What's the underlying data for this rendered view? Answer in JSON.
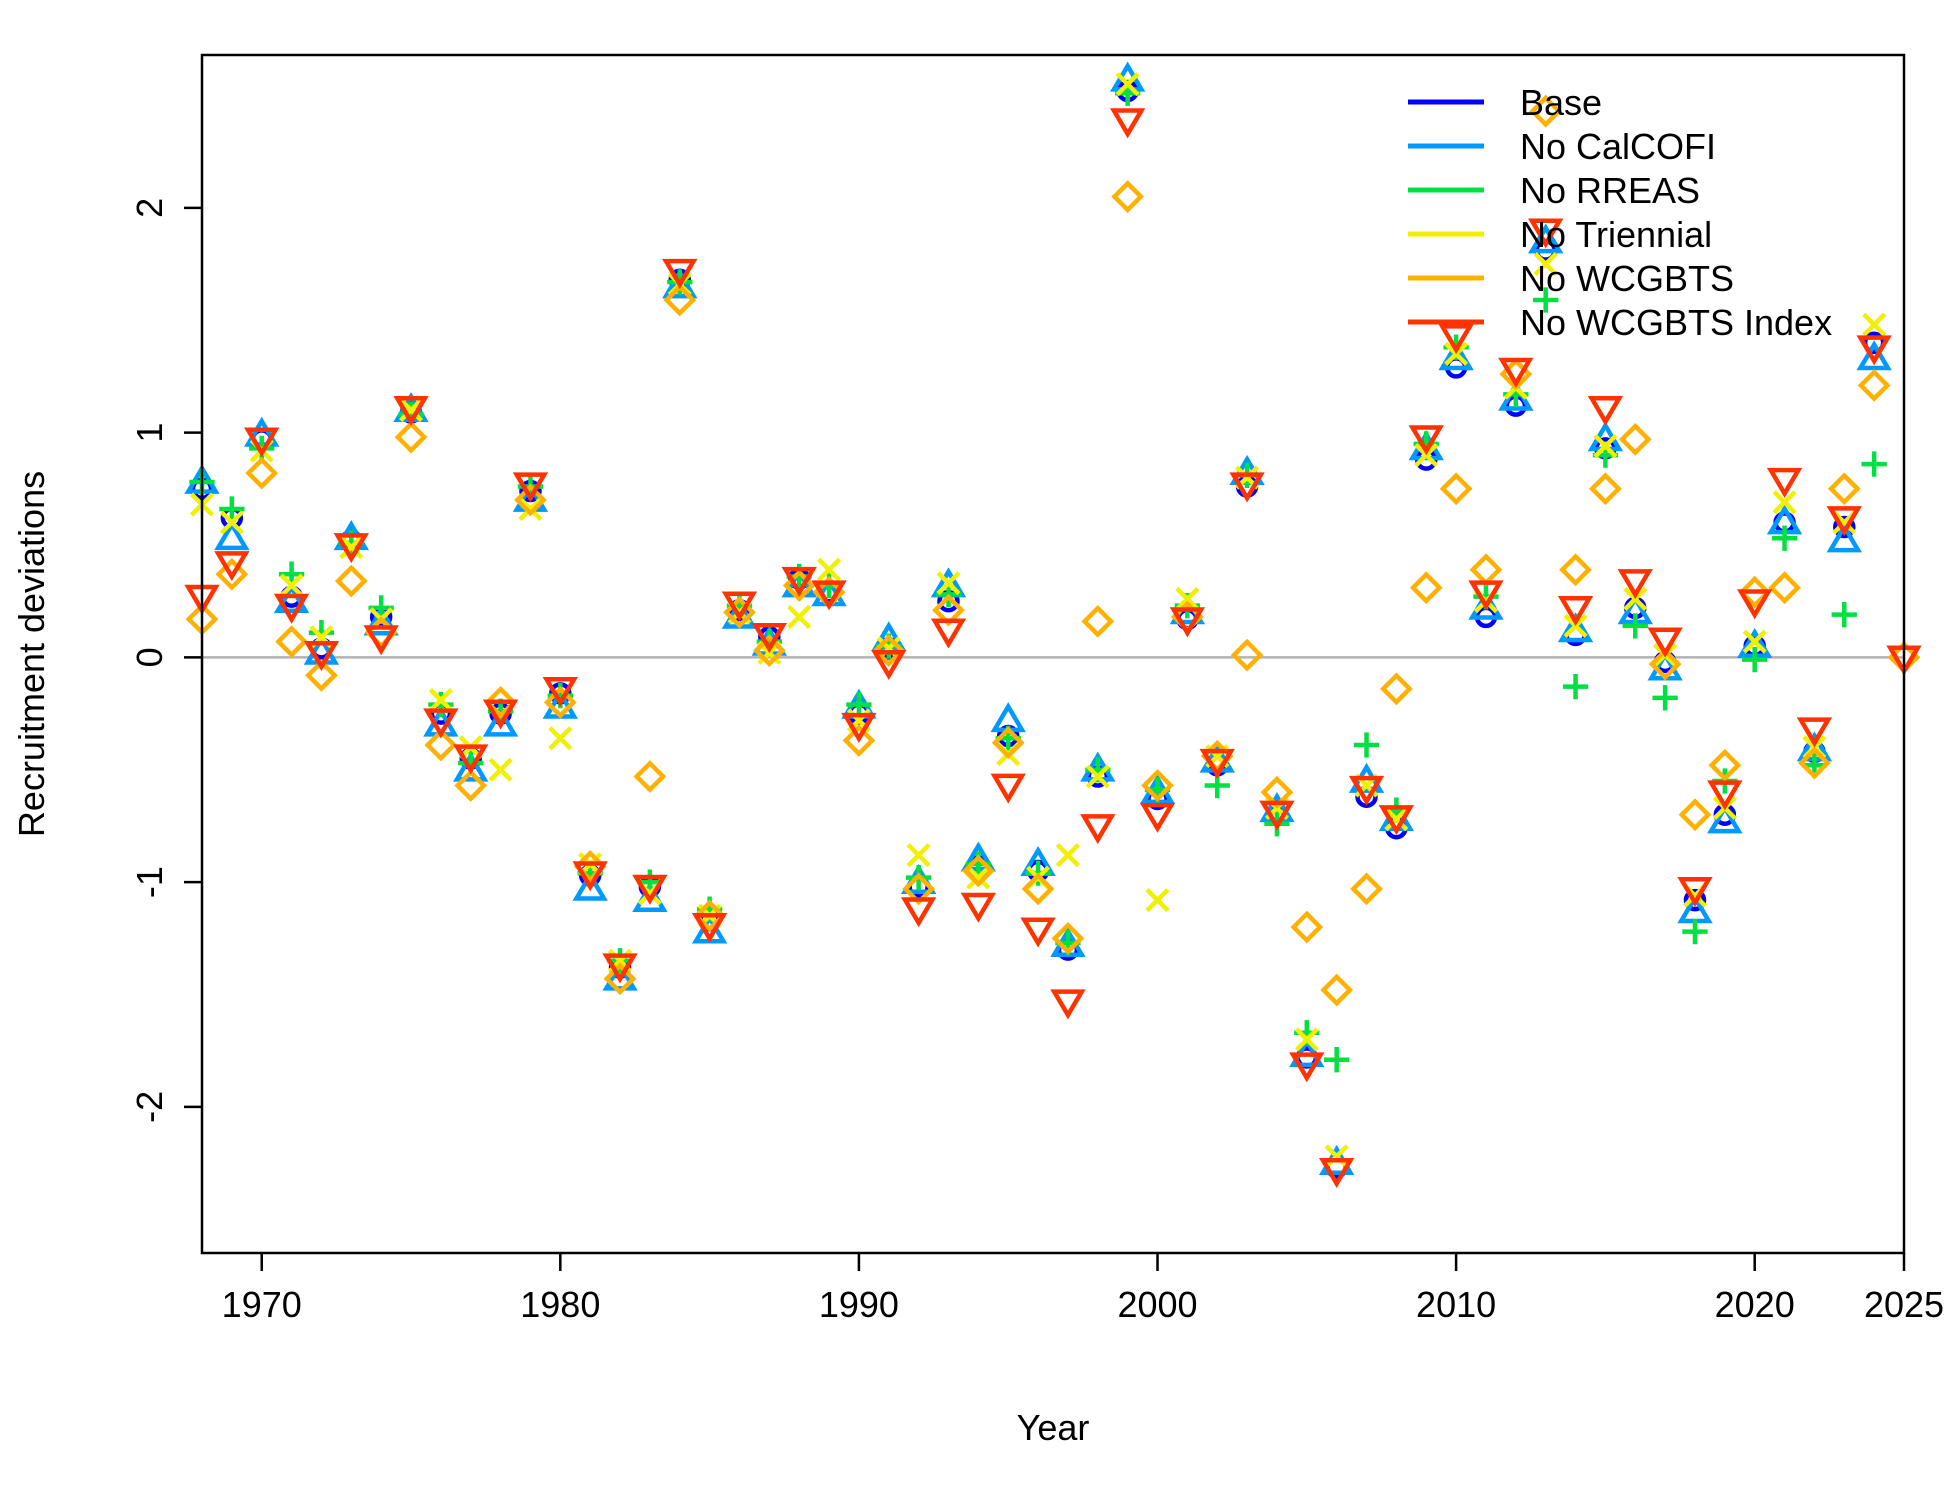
{
  "chart_data": {
    "type": "scatter",
    "title": "",
    "xlabel": "Year",
    "ylabel": "Recruitment deviations",
    "xlim": [
      1968,
      2025
    ],
    "ylim": [
      -2.65,
      2.68
    ],
    "x_ticks": [
      1970,
      1980,
      1990,
      2000,
      2010,
      2020,
      2025
    ],
    "y_ticks": [
      -2,
      -1,
      0,
      1,
      2
    ],
    "reference_line": 0,
    "legend_position": "top-right",
    "grid": false,
    "series": [
      {
        "name": "Base",
        "color": "#0000ff",
        "marker": "circle",
        "x": [
          1968,
          1969,
          1970,
          1971,
          1972,
          1973,
          1974,
          1975,
          1976,
          1977,
          1978,
          1979,
          1980,
          1981,
          1982,
          1983,
          1984,
          1985,
          1986,
          1987,
          1988,
          1989,
          1990,
          1991,
          1992,
          1993,
          1994,
          1995,
          1996,
          1997,
          1998,
          1999,
          2000,
          2001,
          2002,
          2003,
          2004,
          2005,
          2006,
          2007,
          2008,
          2009,
          2010,
          2011,
          2012,
          2013,
          2014,
          2015,
          2016,
          2017,
          2018,
          2019,
          2020,
          2021,
          2022,
          2023,
          2024
        ],
        "y": [
          0.75,
          0.62,
          0.97,
          0.27,
          0.04,
          0.52,
          0.18,
          1.09,
          -0.25,
          -0.45,
          -0.25,
          0.74,
          -0.16,
          -0.97,
          -1.38,
          -1.02,
          1.68,
          -1.17,
          0.21,
          0.09,
          0.35,
          0.29,
          -0.25,
          0.04,
          -1.02,
          0.25,
          -0.93,
          -0.35,
          -0.95,
          -1.3,
          -0.53,
          2.52,
          -0.63,
          0.17,
          -0.48,
          0.76,
          -0.7,
          -1.78,
          -2.27,
          -0.62,
          -0.76,
          0.88,
          1.29,
          0.18,
          1.12,
          1.81,
          0.1,
          0.93,
          0.22,
          -0.02,
          -1.08,
          -0.7,
          0.05,
          0.6,
          -0.42,
          0.58,
          1.4
        ]
      },
      {
        "name": "No CalCOFI",
        "color": "#0099ff",
        "marker": "triangle-up",
        "x": [
          1968,
          1969,
          1970,
          1971,
          1972,
          1973,
          1974,
          1975,
          1976,
          1977,
          1978,
          1979,
          1980,
          1981,
          1982,
          1983,
          1984,
          1985,
          1986,
          1987,
          1988,
          1989,
          1990,
          1991,
          1992,
          1993,
          1994,
          1995,
          1996,
          1997,
          1998,
          1999,
          2000,
          2001,
          2002,
          2003,
          2004,
          2005,
          2006,
          2007,
          2008,
          2009,
          2010,
          2011,
          2012,
          2013,
          2014,
          2015,
          2016,
          2017,
          2018,
          2019,
          2020,
          2021,
          2022,
          2023,
          2024
        ],
        "y": [
          0.78,
          0.53,
          0.99,
          0.25,
          0.02,
          0.53,
          0.15,
          1.1,
          -0.3,
          -0.5,
          -0.3,
          0.7,
          -0.22,
          -1.03,
          -1.43,
          -1.08,
          1.65,
          -1.22,
          0.18,
          0.06,
          0.32,
          0.28,
          -0.22,
          0.08,
          -1.0,
          0.32,
          -0.9,
          -0.28,
          -0.92,
          -1.28,
          -0.5,
          2.57,
          -0.6,
          0.2,
          -0.46,
          0.82,
          -0.68,
          -1.77,
          -2.25,
          -0.55,
          -0.72,
          0.93,
          1.33,
          0.22,
          1.15,
          1.85,
          0.12,
          0.97,
          0.2,
          -0.05,
          -1.13,
          -0.73,
          0.05,
          0.6,
          -0.41,
          0.52,
          1.33
        ]
      },
      {
        "name": "No RREAS",
        "color": "#00e040",
        "marker": "plus",
        "x": [
          1968,
          1969,
          1970,
          1971,
          1972,
          1973,
          1974,
          1975,
          1976,
          1977,
          1978,
          1979,
          1980,
          1981,
          1982,
          1983,
          1984,
          1985,
          1986,
          1987,
          1988,
          1989,
          1990,
          1991,
          1992,
          1993,
          1994,
          1995,
          1996,
          1997,
          1998,
          1999,
          2000,
          2001,
          2002,
          2003,
          2004,
          2005,
          2006,
          2007,
          2008,
          2009,
          2010,
          2011,
          2012,
          2013,
          2014,
          2015,
          2016,
          2017,
          2018,
          2019,
          2020,
          2021,
          2022,
          2023,
          2024
        ],
        "y": [
          0.78,
          0.66,
          0.93,
          0.37,
          0.11,
          0.51,
          0.22,
          1.08,
          -0.21,
          -0.47,
          -0.24,
          0.76,
          -0.17,
          -0.96,
          -1.35,
          -1.0,
          1.67,
          -1.12,
          0.23,
          0.07,
          0.36,
          0.32,
          -0.21,
          0.05,
          -0.98,
          0.28,
          -0.92,
          -0.36,
          -0.96,
          -1.27,
          -0.5,
          2.51,
          -0.59,
          0.23,
          -0.57,
          0.81,
          -0.74,
          -1.67,
          -1.79,
          -0.39,
          -0.68,
          0.95,
          1.38,
          0.27,
          1.17,
          1.59,
          -0.13,
          0.9,
          0.14,
          -0.18,
          -1.22,
          -0.55,
          -0.01,
          0.53,
          -0.48,
          0.19,
          0.86
        ]
      },
      {
        "name": "No Triennial",
        "color": "#f0f000",
        "marker": "x",
        "x": [
          1968,
          1969,
          1970,
          1971,
          1972,
          1973,
          1974,
          1975,
          1976,
          1977,
          1978,
          1979,
          1980,
          1981,
          1982,
          1983,
          1984,
          1985,
          1986,
          1987,
          1988,
          1989,
          1990,
          1991,
          1992,
          1993,
          1994,
          1995,
          1996,
          1997,
          1998,
          1999,
          2000,
          2001,
          2002,
          2003,
          2004,
          2005,
          2006,
          2007,
          2008,
          2009,
          2010,
          2011,
          2012,
          2013,
          2014,
          2015,
          2016,
          2017,
          2018,
          2019,
          2020,
          2021,
          2022,
          2023,
          2024
        ],
        "y": [
          0.68,
          0.6,
          0.92,
          0.32,
          0.09,
          0.49,
          0.17,
          1.1,
          -0.19,
          -0.4,
          -0.5,
          0.66,
          -0.36,
          -0.92,
          -1.35,
          -1.05,
          1.66,
          -1.15,
          0.2,
          0.02,
          0.18,
          0.39,
          -0.28,
          0.04,
          -0.88,
          0.33,
          -0.98,
          -0.43,
          -0.98,
          -0.88,
          -0.53,
          2.55,
          -1.08,
          0.26,
          -0.44,
          0.8,
          -0.67,
          -1.7,
          -2.22,
          -0.57,
          -0.72,
          0.9,
          1.35,
          0.25,
          1.2,
          1.75,
          0.14,
          0.94,
          0.26,
          0.01,
          -1.06,
          -0.67,
          0.07,
          0.69,
          -0.4,
          0.6,
          1.48
        ]
      },
      {
        "name": "No WCGBTS",
        "color": "#ffb000",
        "marker": "diamond",
        "x": [
          1968,
          1969,
          1970,
          1971,
          1972,
          1973,
          1974,
          1975,
          1976,
          1977,
          1978,
          1979,
          1980,
          1981,
          1982,
          1983,
          1984,
          1985,
          1986,
          1987,
          1988,
          1989,
          1990,
          1991,
          1992,
          1993,
          1994,
          1995,
          1996,
          1997,
          1998,
          1999,
          2000,
          2001,
          2002,
          2003,
          2004,
          2005,
          2006,
          2007,
          2008,
          2009,
          2010,
          2011,
          2012,
          2013,
          2014,
          2015,
          2016,
          2017,
          2018,
          2019,
          2020,
          2021,
          2022,
          2023,
          2024,
          2025
        ],
        "y": [
          0.17,
          0.37,
          0.82,
          0.07,
          -0.08,
          0.34,
          0.11,
          0.98,
          -0.39,
          -0.57,
          -0.2,
          0.7,
          -0.2,
          -0.93,
          -1.43,
          -0.53,
          1.59,
          -1.15,
          0.2,
          0.03,
          0.32,
          0.29,
          -0.37,
          0.03,
          -1.03,
          0.21,
          -0.95,
          -0.38,
          -1.03,
          -1.25,
          0.16,
          2.05,
          -0.57,
          0.18,
          -0.44,
          0.01,
          -0.6,
          -1.2,
          -1.48,
          -1.03,
          -0.14,
          0.31,
          0.75,
          0.39,
          1.26,
          2.43,
          0.39,
          0.75,
          0.97,
          -0.03,
          -0.7,
          -0.48,
          0.29,
          0.31,
          -0.47,
          0.75,
          1.21,
          0.0
        ]
      },
      {
        "name": "No WCGBTS Index",
        "color": "#ff3300",
        "marker": "triangle-down",
        "x": [
          1968,
          1969,
          1970,
          1971,
          1972,
          1973,
          1974,
          1975,
          1976,
          1977,
          1978,
          1979,
          1980,
          1981,
          1982,
          1983,
          1984,
          1985,
          1986,
          1987,
          1988,
          1989,
          1990,
          1991,
          1992,
          1993,
          1994,
          1995,
          1996,
          1997,
          1998,
          1999,
          2000,
          2001,
          2002,
          2003,
          2004,
          2005,
          2006,
          2007,
          2008,
          2009,
          2010,
          2011,
          2012,
          2013,
          2014,
          2015,
          2016,
          2017,
          2018,
          2019,
          2020,
          2021,
          2022,
          2023,
          2024,
          2025
        ],
        "y": [
          0.27,
          0.42,
          0.97,
          0.23,
          0.02,
          0.5,
          0.09,
          1.11,
          -0.28,
          -0.44,
          -0.24,
          0.77,
          -0.14,
          -0.96,
          -1.37,
          -1.02,
          1.72,
          -1.19,
          0.24,
          0.1,
          0.35,
          0.29,
          -0.3,
          -0.02,
          -1.12,
          0.12,
          -1.1,
          -0.57,
          -1.21,
          -1.53,
          -0.75,
          2.39,
          -0.7,
          0.17,
          -0.46,
          0.77,
          -0.69,
          -1.81,
          -2.28,
          -0.58,
          -0.71,
          0.98,
          1.43,
          0.29,
          1.28,
          1.9,
          0.22,
          1.11,
          0.34,
          0.08,
          -1.03,
          -0.6,
          0.25,
          0.79,
          -0.32,
          0.62,
          1.38,
          0.0
        ]
      }
    ]
  }
}
